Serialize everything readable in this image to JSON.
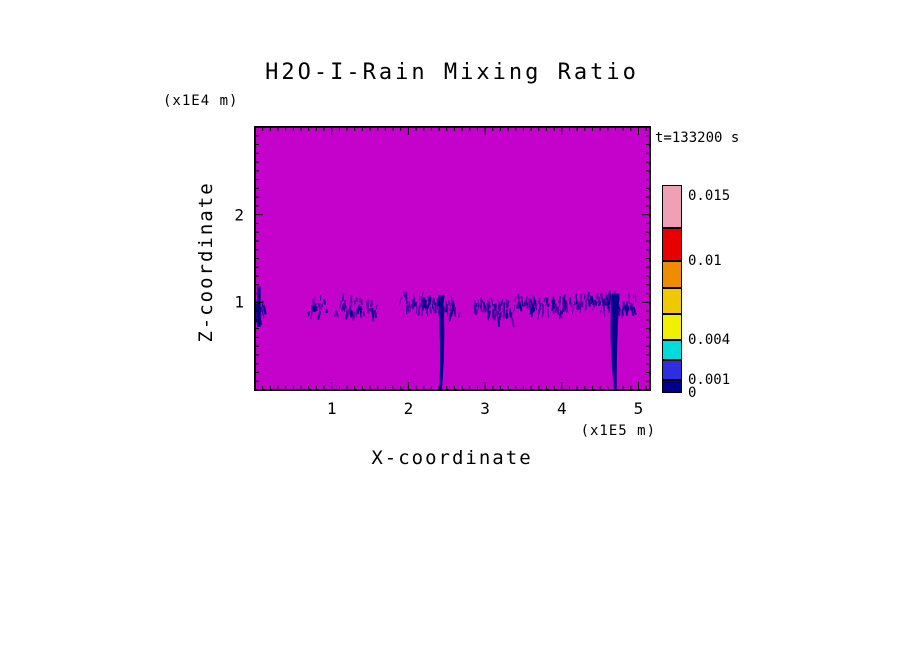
{
  "chart_data": {
    "type": "heatmap",
    "title": "H2O-I-Rain Mixing Ratio",
    "time_annotation": "t=133200 s",
    "xlabel": "X-coordinate",
    "xunit": "(x1E5 m)",
    "ylabel": "Z-coordinate",
    "yunit": "(x1E4 m)",
    "xlim": [
      0,
      5.15
    ],
    "ylim": [
      0,
      3.0
    ],
    "x_major_ticks": [
      1,
      2,
      3,
      4,
      5
    ],
    "y_major_ticks": [
      1,
      2
    ],
    "minor_tick_step": 0.1,
    "x_tick_labels": [
      "1",
      "2",
      "3",
      "4",
      "5"
    ],
    "y_tick_labels": [
      "1",
      "2"
    ],
    "field_background": {
      "value": 0,
      "color": "#C402CC"
    },
    "feature_color": "#00008B",
    "colorbar": {
      "levels": [
        0,
        0.001,
        0.0025,
        0.004,
        0.006,
        0.008,
        0.01,
        0.0125,
        0.0158
      ],
      "colors": [
        "#00008C",
        "#2E2EE0",
        "#00DCDC",
        "#F0F000",
        "#F0C800",
        "#F08C00",
        "#E80000",
        "#F0A0B4"
      ],
      "tick_values": [
        0.015,
        0.01,
        0.004,
        0.001,
        0
      ],
      "tick_labels": [
        "0.015",
        "0.01",
        "0.004",
        "0.001",
        "0"
      ]
    },
    "rain_features": {
      "band_z": 1.0,
      "plumes": [
        {
          "x": 0.05,
          "z": 0.95,
          "spread": 3,
          "strength": 1.4,
          "bar": [
            0.72,
            1.18
          ]
        },
        {
          "x": 0.8,
          "z": 1.0,
          "spread": 5,
          "strength": 0.7
        },
        {
          "x": 1.22,
          "z": 1.0,
          "spread": 7,
          "strength": 0.9
        },
        {
          "x": 1.45,
          "z": 0.98,
          "spread": 5,
          "strength": 0.7
        },
        {
          "x": 2.12,
          "z": 1.05,
          "spread": 8,
          "strength": 1.2
        },
        {
          "x": 2.35,
          "z": 1.02,
          "spread": 9,
          "strength": 1.4
        },
        {
          "x": 2.55,
          "z": 0.98,
          "spread": 6,
          "strength": 0.9
        },
        {
          "x": 3.02,
          "z": 1.0,
          "spread": 8,
          "strength": 1.2
        },
        {
          "x": 3.22,
          "z": 0.95,
          "spread": 6,
          "strength": 1.0
        },
        {
          "x": 3.5,
          "z": 1.02,
          "spread": 7,
          "strength": 1.0
        },
        {
          "x": 3.8,
          "z": 1.0,
          "spread": 8,
          "strength": 1.1
        },
        {
          "x": 4.02,
          "z": 1.0,
          "spread": 6,
          "strength": 0.8
        },
        {
          "x": 4.35,
          "z": 1.05,
          "spread": 8,
          "strength": 1.1
        },
        {
          "x": 4.62,
          "z": 1.05,
          "spread": 9,
          "strength": 1.3
        },
        {
          "x": 4.8,
          "z": 1.0,
          "spread": 6,
          "strength": 0.9
        }
      ],
      "fall_streaks": [
        {
          "x": 2.42,
          "top_z": 1.08,
          "width": 5,
          "bend": 3
        },
        {
          "x": 4.7,
          "top_z": 1.1,
          "width": 8,
          "bend": -3
        }
      ]
    }
  }
}
